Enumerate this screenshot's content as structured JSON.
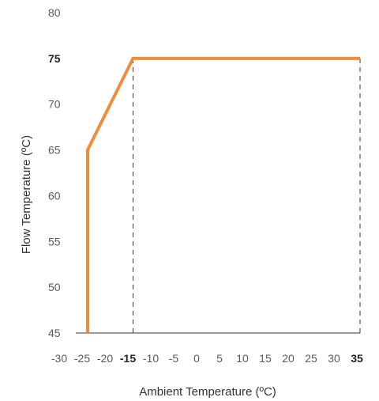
{
  "chart_data": {
    "type": "line",
    "xlabel": "Ambient Temperature (ºC)",
    "ylabel": "Flow Temperature (ºC)",
    "xlim": [
      -30,
      35
    ],
    "ylim": [
      45,
      80
    ],
    "x_ticks": [
      "-30",
      "-25",
      "-20",
      "-15",
      "-10",
      "-5",
      "0",
      "5",
      "10",
      "15",
      "20",
      "25",
      "30",
      "35"
    ],
    "y_ticks": [
      "80",
      "75",
      "70",
      "65",
      "60",
      "55",
      "50",
      "45"
    ],
    "bold_x_ticks": [
      "-15",
      "35"
    ],
    "bold_y_ticks": [
      "75"
    ],
    "series": [
      {
        "color": "#f28c38",
        "points": [
          {
            "x": -25,
            "y": 45
          },
          {
            "x": -25,
            "y": 65
          },
          {
            "x": -15,
            "y": 75
          },
          {
            "x": 35,
            "y": 75
          }
        ]
      }
    ],
    "reference_lines_x": [
      -15,
      35
    ],
    "grid": false,
    "legend": "none"
  }
}
